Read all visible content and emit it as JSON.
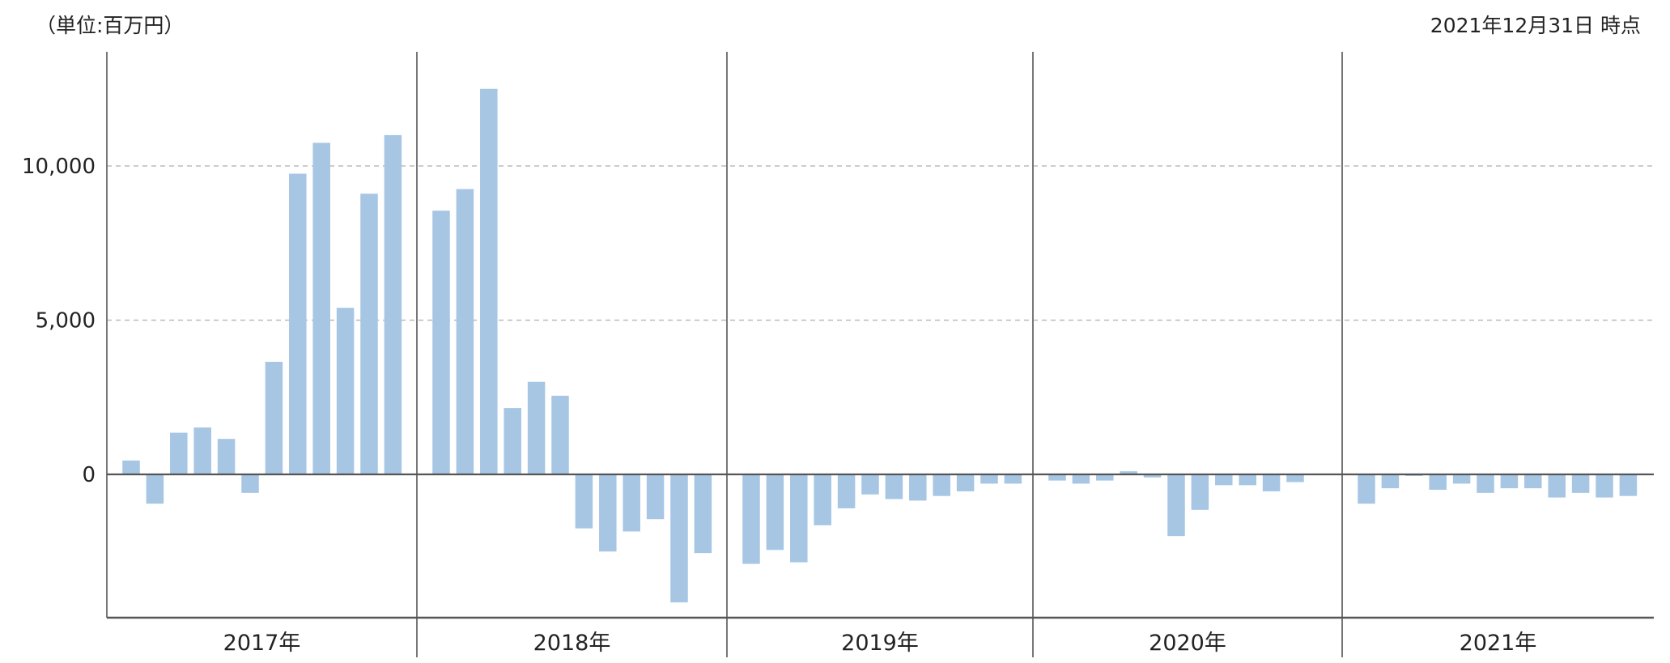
{
  "header": {
    "unit_label": "（単位:百万円）",
    "as_of_label": "2021年12月31日 時点"
  },
  "colors": {
    "bar": "#a6c6e4",
    "axis": "#555555",
    "grid": "#bbbbbb",
    "divider": "#777777"
  },
  "chart_data": {
    "type": "bar",
    "title": "",
    "xlabel": "",
    "ylabel": "",
    "ylim": [
      -4700,
      13500
    ],
    "yticks": [
      0,
      5000,
      10000
    ],
    "ytick_labels": [
      "0",
      "5,000",
      "10,000"
    ],
    "grid": true,
    "legend": "none",
    "years": [
      "2017年",
      "2018年",
      "2019年",
      "2020年",
      "2021年"
    ],
    "series": [
      {
        "year": "2017年",
        "values": [
          450,
          -950,
          1350,
          1520,
          1150,
          -600,
          3650,
          9750,
          10750,
          5400,
          9100,
          11000
        ]
      },
      {
        "year": "2018年",
        "values": [
          8550,
          9250,
          12500,
          2150,
          3000,
          2550,
          -1750,
          -2500,
          -1850,
          -1450,
          -4150,
          -2550
        ]
      },
      {
        "year": "2019年",
        "values": [
          -2900,
          -2450,
          -2850,
          -1650,
          -1100,
          -650,
          -800,
          -850,
          -700,
          -550,
          -300,
          -300
        ]
      },
      {
        "year": "2020年",
        "values": [
          -200,
          -300,
          -200,
          100,
          -100,
          -2000,
          -1150,
          -350,
          -350,
          -550,
          -250
        ]
      },
      {
        "year": "2021年",
        "values": [
          -950,
          -450,
          -50,
          -500,
          -300,
          -600,
          -450,
          -450,
          -750,
          -600,
          -750,
          -700
        ]
      }
    ]
  }
}
